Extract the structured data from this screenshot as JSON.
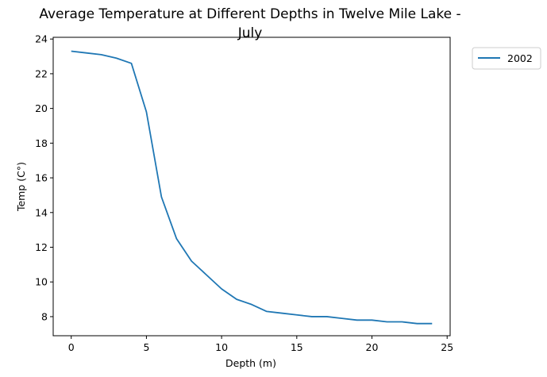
{
  "chart_data": {
    "type": "line",
    "title_line1": "Average Temperature at Different Depths in Twelve Mile Lake -",
    "title_line2": "July",
    "xlabel": "Depth (m)",
    "ylabel": "Temp (C°)",
    "xlim": [
      -1.2,
      25.2
    ],
    "ylim": [
      6.9,
      24.1
    ],
    "xticks": [
      0,
      5,
      10,
      15,
      20,
      25
    ],
    "yticks": [
      8,
      10,
      12,
      14,
      16,
      18,
      20,
      22,
      24
    ],
    "grid": false,
    "legend_position": "outside-top-right",
    "series": [
      {
        "name": "2002",
        "color": "#1f77b4",
        "x": [
          0,
          1,
          2,
          3,
          4,
          5,
          6,
          7,
          8,
          9,
          10,
          11,
          12,
          13,
          14,
          15,
          16,
          17,
          18,
          19,
          20,
          21,
          22,
          23,
          24
        ],
        "y": [
          23.3,
          23.2,
          23.1,
          22.9,
          22.6,
          19.8,
          14.9,
          12.5,
          11.2,
          10.4,
          9.6,
          9.0,
          8.7,
          8.3,
          8.2,
          8.1,
          8.0,
          8.0,
          7.9,
          7.8,
          7.8,
          7.7,
          7.7,
          7.6,
          7.6
        ]
      }
    ]
  }
}
